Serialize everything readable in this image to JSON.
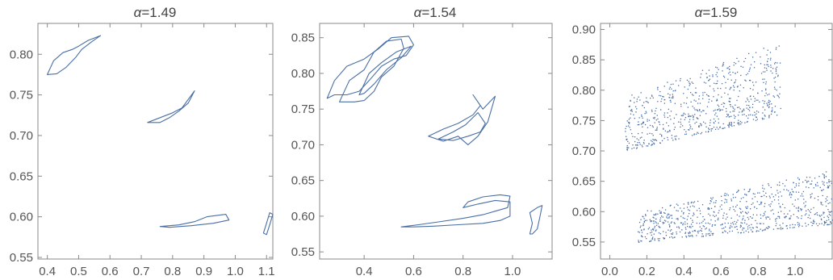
{
  "colors": {
    "series": "#4a6fa5",
    "frame": "#8a8a8a",
    "text": "#555555"
  },
  "chart_data": [
    {
      "type": "line",
      "title_symbol": "α",
      "title_value": "=1.49",
      "xlim": [
        0.37,
        1.12
      ],
      "ylim": [
        0.548,
        0.838
      ],
      "xticks": [
        "0.4",
        "0.5",
        "0.6",
        "0.7",
        "0.8",
        "0.9",
        "1.0",
        "1.1"
      ],
      "yticks": [
        "0.55",
        "0.60",
        "0.65",
        "0.70",
        "0.75",
        "0.80"
      ],
      "grid": false,
      "loops": [
        [
          [
            0.4,
            0.775
          ],
          [
            0.42,
            0.792
          ],
          [
            0.45,
            0.802
          ],
          [
            0.48,
            0.806
          ],
          [
            0.5,
            0.81
          ],
          [
            0.53,
            0.817
          ],
          [
            0.57,
            0.823
          ],
          [
            0.54,
            0.815
          ],
          [
            0.51,
            0.806
          ],
          [
            0.49,
            0.796
          ],
          [
            0.46,
            0.784
          ],
          [
            0.43,
            0.776
          ],
          [
            0.4,
            0.775
          ]
        ],
        [
          [
            0.72,
            0.716
          ],
          [
            0.76,
            0.722
          ],
          [
            0.8,
            0.728
          ],
          [
            0.83,
            0.734
          ],
          [
            0.87,
            0.755
          ],
          [
            0.85,
            0.74
          ],
          [
            0.82,
            0.73
          ],
          [
            0.79,
            0.722
          ],
          [
            0.76,
            0.716
          ],
          [
            0.72,
            0.716
          ]
        ],
        [
          [
            0.76,
            0.588
          ],
          [
            0.82,
            0.59
          ],
          [
            0.87,
            0.594
          ],
          [
            0.91,
            0.6
          ],
          [
            0.97,
            0.603
          ],
          [
            0.98,
            0.596
          ],
          [
            0.93,
            0.592
          ],
          [
            0.86,
            0.589
          ],
          [
            0.79,
            0.587
          ],
          [
            0.76,
            0.588
          ]
        ],
        [
          [
            1.09,
            0.58
          ],
          [
            1.1,
            0.592
          ],
          [
            1.11,
            0.605
          ],
          [
            1.12,
            0.603
          ],
          [
            1.11,
            0.59
          ],
          [
            1.1,
            0.578
          ],
          [
            1.09,
            0.58
          ]
        ]
      ]
    },
    {
      "type": "line",
      "title_symbol": "α",
      "title_value": "=1.54",
      "xlim": [
        0.22,
        1.16
      ],
      "ylim": [
        0.54,
        0.87
      ],
      "xticks": [
        "0.4",
        "0.6",
        "0.8",
        "1.0"
      ],
      "yticks": [
        "0.55",
        "0.60",
        "0.65",
        "0.70",
        "0.75",
        "0.80",
        "0.85"
      ],
      "grid": false,
      "loops": [
        [
          [
            0.25,
            0.765
          ],
          [
            0.28,
            0.79
          ],
          [
            0.33,
            0.81
          ],
          [
            0.4,
            0.82
          ],
          [
            0.46,
            0.835
          ],
          [
            0.51,
            0.85
          ],
          [
            0.58,
            0.852
          ],
          [
            0.6,
            0.84
          ],
          [
            0.57,
            0.825
          ],
          [
            0.52,
            0.82
          ],
          [
            0.47,
            0.81
          ],
          [
            0.42,
            0.79
          ],
          [
            0.38,
            0.775
          ],
          [
            0.33,
            0.77
          ],
          [
            0.28,
            0.77
          ],
          [
            0.25,
            0.765
          ]
        ],
        [
          [
            0.3,
            0.76
          ],
          [
            0.34,
            0.79
          ],
          [
            0.4,
            0.805
          ],
          [
            0.44,
            0.83
          ],
          [
            0.49,
            0.845
          ],
          [
            0.55,
            0.848
          ],
          [
            0.56,
            0.835
          ],
          [
            0.52,
            0.81
          ],
          [
            0.47,
            0.795
          ],
          [
            0.44,
            0.775
          ],
          [
            0.4,
            0.762
          ],
          [
            0.36,
            0.76
          ],
          [
            0.3,
            0.76
          ]
        ],
        [
          [
            0.38,
            0.77
          ],
          [
            0.42,
            0.8
          ],
          [
            0.47,
            0.815
          ],
          [
            0.53,
            0.83
          ],
          [
            0.59,
            0.838
          ],
          [
            0.55,
            0.822
          ],
          [
            0.49,
            0.805
          ],
          [
            0.44,
            0.785
          ],
          [
            0.4,
            0.772
          ],
          [
            0.38,
            0.77
          ]
        ],
        [
          [
            0.66,
            0.712
          ],
          [
            0.72,
            0.722
          ],
          [
            0.78,
            0.73
          ],
          [
            0.84,
            0.742
          ],
          [
            0.87,
            0.755
          ],
          [
            0.84,
            0.77
          ],
          [
            0.88,
            0.75
          ],
          [
            0.93,
            0.768
          ],
          [
            0.9,
            0.732
          ],
          [
            0.86,
            0.712
          ],
          [
            0.82,
            0.7
          ],
          [
            0.78,
            0.712
          ],
          [
            0.72,
            0.705
          ],
          [
            0.66,
            0.712
          ]
        ],
        [
          [
            0.7,
            0.708
          ],
          [
            0.76,
            0.718
          ],
          [
            0.81,
            0.728
          ],
          [
            0.86,
            0.745
          ],
          [
            0.89,
            0.73
          ],
          [
            0.87,
            0.718
          ],
          [
            0.82,
            0.712
          ],
          [
            0.76,
            0.706
          ],
          [
            0.7,
            0.708
          ]
        ],
        [
          [
            0.55,
            0.585
          ],
          [
            0.62,
            0.588
          ],
          [
            0.7,
            0.592
          ],
          [
            0.8,
            0.597
          ],
          [
            0.88,
            0.602
          ],
          [
            0.94,
            0.608
          ],
          [
            0.98,
            0.612
          ],
          [
            0.99,
            0.628
          ],
          [
            0.95,
            0.63
          ],
          [
            0.88,
            0.627
          ],
          [
            0.82,
            0.62
          ],
          [
            0.8,
            0.612
          ],
          [
            0.86,
            0.617
          ],
          [
            0.93,
            0.622
          ],
          [
            0.99,
            0.62
          ],
          [
            0.99,
            0.6
          ],
          [
            0.95,
            0.594
          ],
          [
            0.88,
            0.59
          ],
          [
            0.78,
            0.588
          ],
          [
            0.68,
            0.586
          ],
          [
            0.6,
            0.585
          ],
          [
            0.55,
            0.585
          ]
        ],
        [
          [
            1.07,
            0.575
          ],
          [
            1.08,
            0.59
          ],
          [
            1.07,
            0.605
          ],
          [
            1.1,
            0.612
          ],
          [
            1.12,
            0.615
          ],
          [
            1.11,
            0.598
          ],
          [
            1.1,
            0.582
          ],
          [
            1.08,
            0.575
          ],
          [
            1.07,
            0.575
          ]
        ]
      ]
    },
    {
      "type": "scatter",
      "title_symbol": "α",
      "title_value": "=1.59",
      "xlim": [
        -0.05,
        1.2
      ],
      "ylim": [
        0.522,
        0.91
      ],
      "xticks": [
        "0.0",
        "0.2",
        "0.4",
        "0.6",
        "0.8",
        "1.0"
      ],
      "yticks": [
        "0.55",
        "0.60",
        "0.65",
        "0.70",
        "0.75",
        "0.80",
        "0.85",
        "0.90"
      ],
      "grid": false,
      "point_clouds": [
        {
          "count": 700,
          "x": [
            0.08,
            0.92
          ],
          "y_bottom": [
            0.7,
            0.76
          ],
          "y_top": [
            0.79,
            0.88
          ]
        },
        {
          "count": 750,
          "x": [
            0.15,
            1.2
          ],
          "y_bottom": [
            0.55,
            0.58
          ],
          "y_top": [
            0.6,
            0.67
          ]
        }
      ]
    }
  ]
}
